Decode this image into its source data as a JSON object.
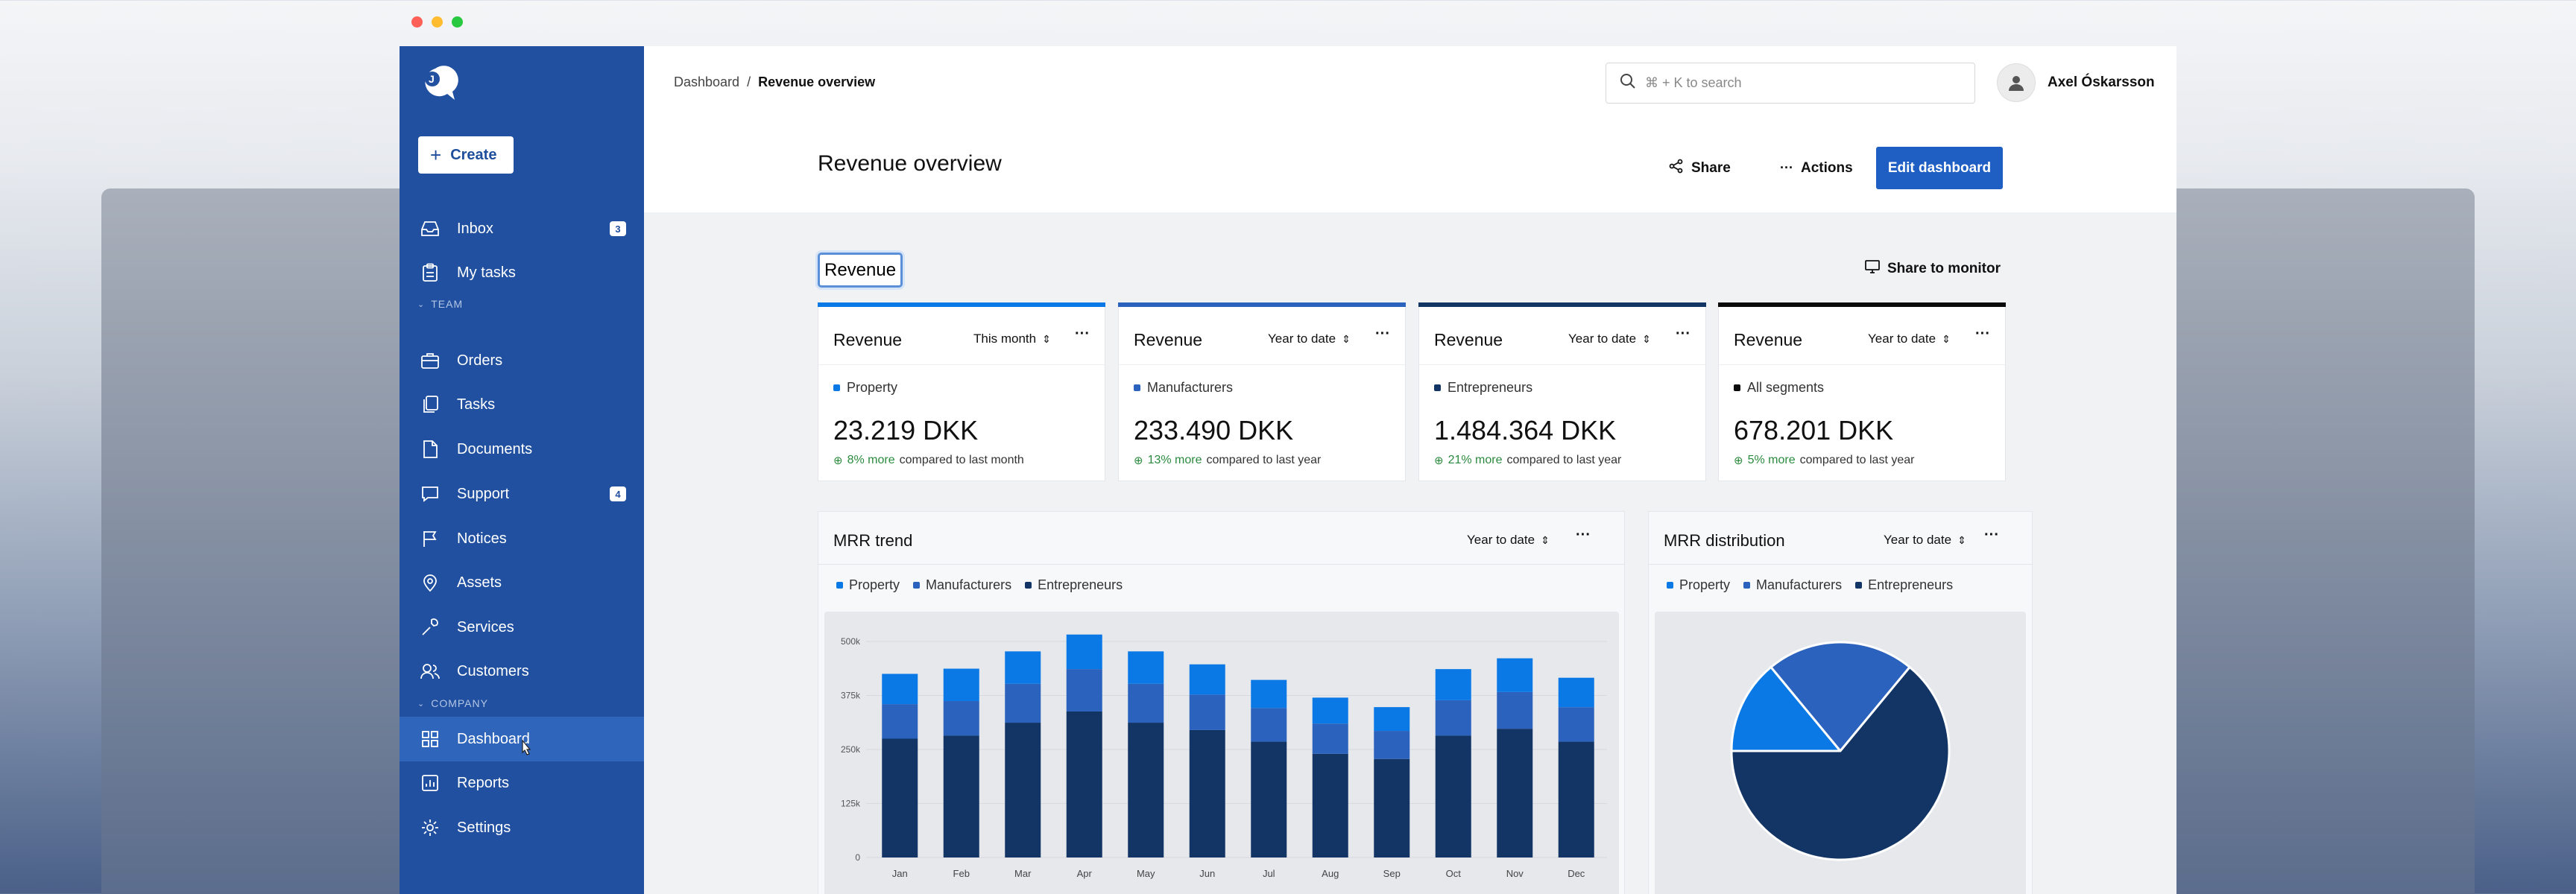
{
  "window": {
    "traffic_colors": [
      "#fe5f57",
      "#febc2e",
      "#28c840"
    ]
  },
  "colors": {
    "sidebar": "#20509f",
    "accent": "#1f5fc4",
    "property": "#0a79e6",
    "manufacturers": "#2a62bd",
    "entrepreneurs": "#123565",
    "all": "#0b0b0b",
    "positive": "#2b8a3e"
  },
  "sidebar": {
    "create_label": "Create",
    "items": [
      {
        "label": "Inbox",
        "icon": "inbox-icon",
        "badge": "3"
      },
      {
        "label": "My tasks",
        "icon": "clipboard-icon"
      }
    ],
    "team_label": "TEAM",
    "team_items": [
      {
        "label": "Orders",
        "icon": "briefcase-icon"
      },
      {
        "label": "Tasks",
        "icon": "copy-icon"
      },
      {
        "label": "Documents",
        "icon": "file-icon"
      },
      {
        "label": "Support",
        "icon": "chat-icon",
        "badge": "4"
      },
      {
        "label": "Notices",
        "icon": "flag-icon"
      },
      {
        "label": "Assets",
        "icon": "location-pin-icon"
      },
      {
        "label": "Services",
        "icon": "wrench-icon"
      },
      {
        "label": "Customers",
        "icon": "users-icon"
      }
    ],
    "company_label": "COMPANY",
    "company_items": [
      {
        "label": "Dashboard",
        "icon": "grid-icon",
        "active": true
      },
      {
        "label": "Reports",
        "icon": "chart-icon"
      },
      {
        "label": "Settings",
        "icon": "gear-icon"
      }
    ]
  },
  "header": {
    "breadcrumb_root": "Dashboard",
    "breadcrumb_sep": "/",
    "breadcrumb_current": "Revenue overview",
    "search_placeholder": "⌘ + K to search",
    "user_name": "Axel Óskarsson"
  },
  "page": {
    "title": "Revenue overview",
    "share_label": "Share",
    "actions_label": "Actions",
    "edit_label": "Edit dashboard",
    "section_title": "Revenue",
    "share_monitor_label": "Share to monitor"
  },
  "cards": [
    {
      "title": "Revenue",
      "period": "This month",
      "segment": "Property",
      "value": "23.219 DKK",
      "change": "8% more",
      "compare": "compared to last month"
    },
    {
      "title": "Revenue",
      "period": "Year to date",
      "segment": "Manufacturers",
      "value": "233.490 DKK",
      "change": "13% more",
      "compare": "compared to last year"
    },
    {
      "title": "Revenue",
      "period": "Year to date",
      "segment": "Entrepreneurs",
      "value": "1.484.364 DKK",
      "change": "21% more",
      "compare": "compared to last year"
    },
    {
      "title": "Revenue",
      "period": "Year to date",
      "segment": "All segments",
      "value": "678.201 DKK",
      "change": "5% more",
      "compare": "compared to last year"
    }
  ],
  "mrr_trend": {
    "title": "MRR trend",
    "period": "Year to date"
  },
  "mrr_distribution": {
    "title": "MRR distribution",
    "period": "Year to date"
  },
  "legend": [
    "Property",
    "Manufacturers",
    "Entrepreneurs"
  ],
  "chart_data": [
    {
      "type": "bar",
      "stacked": true,
      "title": "MRR trend",
      "categories": [
        "Jan",
        "Feb",
        "Mar",
        "Apr",
        "May",
        "Jun",
        "Jul",
        "Aug",
        "Sep",
        "Oct",
        "Nov",
        "Dec"
      ],
      "yticks": [
        "0",
        "125k",
        "250k",
        "375k",
        "500k"
      ],
      "ylim": [
        0,
        500000
      ],
      "series": [
        {
          "name": "Entrepreneurs",
          "values": [
            275000,
            282000,
            312000,
            338000,
            312000,
            295000,
            268000,
            240000,
            228000,
            282000,
            298000,
            268000
          ]
        },
        {
          "name": "Manufacturers",
          "values": [
            80000,
            80000,
            90000,
            98000,
            90000,
            82000,
            78000,
            70000,
            65000,
            82000,
            85000,
            80000
          ]
        },
        {
          "name": "Property",
          "values": [
            70000,
            75000,
            75000,
            80000,
            75000,
            70000,
            65000,
            60000,
            55000,
            72000,
            78000,
            68000
          ]
        }
      ]
    },
    {
      "type": "pie",
      "title": "MRR distribution",
      "series": [
        {
          "name": "Property",
          "value": 14
        },
        {
          "name": "Manufacturers",
          "value": 22
        },
        {
          "name": "Entrepreneurs",
          "value": 64
        }
      ]
    }
  ]
}
